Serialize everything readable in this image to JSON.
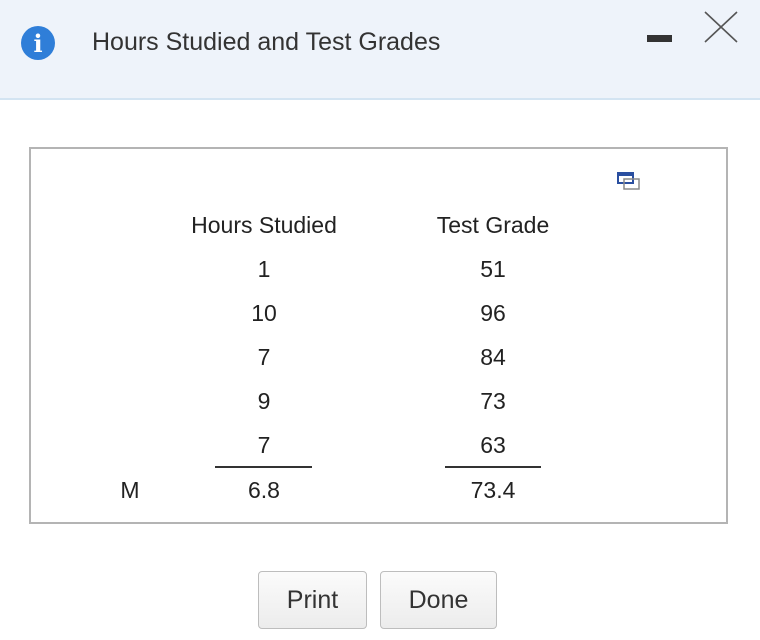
{
  "header": {
    "title": "Hours Studied and Test Grades"
  },
  "table": {
    "columns": [
      "Hours Studied",
      "Test Grade"
    ],
    "rows": [
      [
        "1",
        "51"
      ],
      [
        "10",
        "96"
      ],
      [
        "7",
        "84"
      ],
      [
        "9",
        "73"
      ],
      [
        "7",
        "63"
      ]
    ],
    "summary": {
      "label": "M",
      "values": [
        "6.8",
        "73.4"
      ]
    }
  },
  "buttons": [
    "Print",
    "Done"
  ]
}
